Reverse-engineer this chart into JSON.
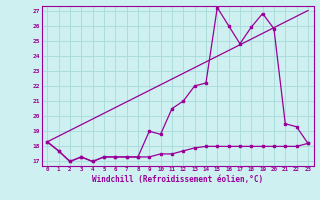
{
  "title": "",
  "xlabel": "Windchill (Refroidissement éolien,°C)",
  "ylabel": "",
  "bg_color": "#cff0f0",
  "grid_color": "#aadddd",
  "line_color": "#990099",
  "xlim": [
    -0.5,
    23.5
  ],
  "ylim": [
    16.7,
    27.3
  ],
  "yticks": [
    17,
    18,
    19,
    20,
    21,
    22,
    23,
    24,
    25,
    26,
    27
  ],
  "xticks": [
    0,
    1,
    2,
    3,
    4,
    5,
    6,
    7,
    8,
    9,
    10,
    11,
    12,
    13,
    14,
    15,
    16,
    17,
    18,
    19,
    20,
    21,
    22,
    23
  ],
  "series1_x": [
    0,
    1,
    2,
    3,
    4,
    5,
    6,
    7,
    8,
    9,
    10,
    11,
    12,
    13,
    14,
    15,
    16,
    17,
    18,
    19,
    20,
    21,
    22,
    23
  ],
  "series1_y": [
    18.3,
    17.7,
    17.0,
    17.3,
    17.0,
    17.3,
    17.3,
    17.3,
    17.3,
    19.0,
    18.8,
    20.5,
    21.0,
    22.0,
    22.2,
    27.2,
    26.0,
    24.8,
    25.9,
    26.8,
    25.8,
    19.5,
    19.3,
    18.2
  ],
  "series2_x": [
    0,
    1,
    2,
    3,
    4,
    5,
    6,
    7,
    8,
    9,
    10,
    11,
    12,
    13,
    14,
    15,
    16,
    17,
    18,
    19,
    20,
    21,
    22,
    23
  ],
  "series2_y": [
    18.3,
    17.7,
    17.0,
    17.3,
    17.0,
    17.3,
    17.3,
    17.3,
    17.3,
    17.3,
    17.5,
    17.5,
    17.7,
    17.9,
    18.0,
    18.0,
    18.0,
    18.0,
    18.0,
    18.0,
    18.0,
    18.0,
    18.0,
    18.2
  ],
  "series3_x": [
    0,
    23
  ],
  "series3_y": [
    18.3,
    27.0
  ]
}
